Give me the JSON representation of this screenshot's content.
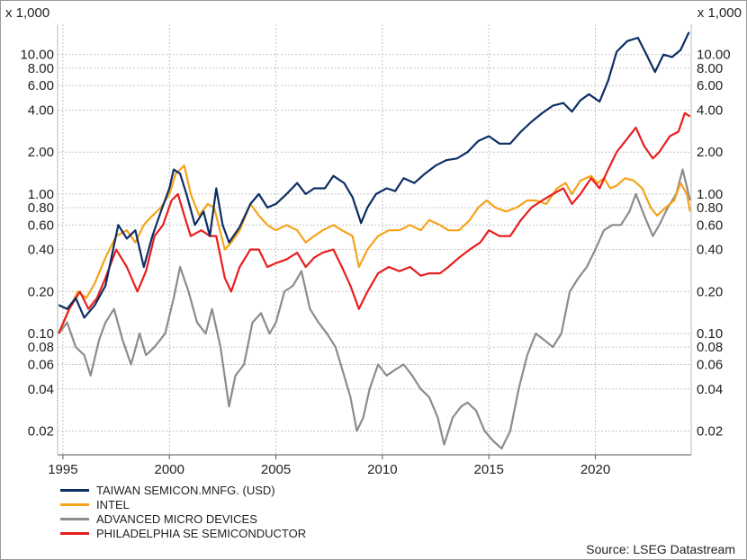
{
  "chart_data": {
    "type": "line",
    "scale": "log",
    "multiplier_label": "x 1,000",
    "y_ticks": [
      0.02,
      0.04,
      0.06,
      0.08,
      0.1,
      0.2,
      0.4,
      0.6,
      0.8,
      1.0,
      2.0,
      4.0,
      6.0,
      8.0,
      10.0
    ],
    "y_tick_labels": [
      "0.02",
      "0.04",
      "0.06",
      "0.08",
      "0.10",
      "0.20",
      "0.40",
      "0.60",
      "0.80",
      "1.00",
      "2.00",
      "4.00",
      "6.00",
      "8.00",
      "10.00"
    ],
    "x_ticks": [
      1995,
      2000,
      2005,
      2010,
      2015,
      2020
    ],
    "xlim": [
      1994.75,
      2024.5
    ],
    "ylim": [
      0.0135,
      16.5
    ],
    "grid": true,
    "legend_position": "bottom-left",
    "series": [
      {
        "name": "TAIWAN SEMICON.MNFG. (USD)",
        "color": "#0c2e62",
        "points": [
          [
            1994.8,
            0.16
          ],
          [
            1995.2,
            0.15
          ],
          [
            1995.6,
            0.18
          ],
          [
            1996.0,
            0.13
          ],
          [
            1996.5,
            0.16
          ],
          [
            1997.0,
            0.22
          ],
          [
            1997.6,
            0.6
          ],
          [
            1998.0,
            0.48
          ],
          [
            1998.4,
            0.55
          ],
          [
            1998.8,
            0.3
          ],
          [
            1999.2,
            0.5
          ],
          [
            1999.6,
            0.75
          ],
          [
            2000.0,
            1.1
          ],
          [
            2000.2,
            1.5
          ],
          [
            2000.5,
            1.4
          ],
          [
            2000.8,
            1.0
          ],
          [
            2001.2,
            0.6
          ],
          [
            2001.6,
            0.75
          ],
          [
            2001.9,
            0.5
          ],
          [
            2002.2,
            1.1
          ],
          [
            2002.5,
            0.6
          ],
          [
            2002.8,
            0.45
          ],
          [
            2003.3,
            0.58
          ],
          [
            2003.8,
            0.85
          ],
          [
            2004.2,
            1.0
          ],
          [
            2004.6,
            0.8
          ],
          [
            2005.0,
            0.85
          ],
          [
            2005.5,
            1.0
          ],
          [
            2006.0,
            1.2
          ],
          [
            2006.4,
            1.0
          ],
          [
            2006.8,
            1.1
          ],
          [
            2007.3,
            1.1
          ],
          [
            2007.7,
            1.35
          ],
          [
            2008.2,
            1.2
          ],
          [
            2008.6,
            0.95
          ],
          [
            2009.0,
            0.62
          ],
          [
            2009.3,
            0.8
          ],
          [
            2009.7,
            1.0
          ],
          [
            2010.2,
            1.1
          ],
          [
            2010.6,
            1.05
          ],
          [
            2011.0,
            1.3
          ],
          [
            2011.5,
            1.2
          ],
          [
            2012.0,
            1.4
          ],
          [
            2012.5,
            1.6
          ],
          [
            2013.0,
            1.75
          ],
          [
            2013.5,
            1.8
          ],
          [
            2014.0,
            2.0
          ],
          [
            2014.5,
            2.4
          ],
          [
            2015.0,
            2.6
          ],
          [
            2015.5,
            2.3
          ],
          [
            2016.0,
            2.3
          ],
          [
            2016.5,
            2.8
          ],
          [
            2017.0,
            3.3
          ],
          [
            2017.5,
            3.8
          ],
          [
            2018.0,
            4.3
          ],
          [
            2018.5,
            4.5
          ],
          [
            2018.9,
            3.9
          ],
          [
            2019.3,
            4.7
          ],
          [
            2019.7,
            5.2
          ],
          [
            2020.2,
            4.6
          ],
          [
            2020.6,
            6.5
          ],
          [
            2021.0,
            10.5
          ],
          [
            2021.5,
            12.5
          ],
          [
            2022.0,
            13.2
          ],
          [
            2022.4,
            10.0
          ],
          [
            2022.8,
            7.5
          ],
          [
            2023.2,
            10.0
          ],
          [
            2023.6,
            9.6
          ],
          [
            2024.0,
            10.8
          ],
          [
            2024.4,
            14.5
          ]
        ]
      },
      {
        "name": "INTEL",
        "color": "#f5a31a",
        "points": [
          [
            1994.8,
            0.1
          ],
          [
            1995.3,
            0.15
          ],
          [
            1995.7,
            0.2
          ],
          [
            1996.1,
            0.18
          ],
          [
            1996.5,
            0.23
          ],
          [
            1997.0,
            0.35
          ],
          [
            1997.5,
            0.5
          ],
          [
            1998.0,
            0.55
          ],
          [
            1998.4,
            0.45
          ],
          [
            1998.8,
            0.6
          ],
          [
            1999.2,
            0.7
          ],
          [
            1999.6,
            0.8
          ],
          [
            2000.0,
            1.0
          ],
          [
            2000.3,
            1.4
          ],
          [
            2000.7,
            1.6
          ],
          [
            2001.0,
            1.0
          ],
          [
            2001.4,
            0.7
          ],
          [
            2001.8,
            0.85
          ],
          [
            2002.1,
            0.8
          ],
          [
            2002.6,
            0.4
          ],
          [
            2002.9,
            0.45
          ],
          [
            2003.3,
            0.55
          ],
          [
            2003.8,
            0.85
          ],
          [
            2004.2,
            0.7
          ],
          [
            2004.6,
            0.6
          ],
          [
            2005.0,
            0.55
          ],
          [
            2005.5,
            0.6
          ],
          [
            2006.0,
            0.55
          ],
          [
            2006.4,
            0.45
          ],
          [
            2006.8,
            0.5
          ],
          [
            2007.2,
            0.55
          ],
          [
            2007.7,
            0.6
          ],
          [
            2008.1,
            0.55
          ],
          [
            2008.6,
            0.5
          ],
          [
            2008.9,
            0.3
          ],
          [
            2009.3,
            0.4
          ],
          [
            2009.8,
            0.5
          ],
          [
            2010.3,
            0.55
          ],
          [
            2010.8,
            0.55
          ],
          [
            2011.3,
            0.6
          ],
          [
            2011.8,
            0.55
          ],
          [
            2012.2,
            0.65
          ],
          [
            2012.7,
            0.6
          ],
          [
            2013.1,
            0.55
          ],
          [
            2013.6,
            0.55
          ],
          [
            2014.1,
            0.65
          ],
          [
            2014.5,
            0.8
          ],
          [
            2014.9,
            0.9
          ],
          [
            2015.3,
            0.8
          ],
          [
            2015.8,
            0.75
          ],
          [
            2016.3,
            0.8
          ],
          [
            2016.8,
            0.9
          ],
          [
            2017.2,
            0.9
          ],
          [
            2017.7,
            0.85
          ],
          [
            2018.2,
            1.1
          ],
          [
            2018.6,
            1.2
          ],
          [
            2018.9,
            1.0
          ],
          [
            2019.3,
            1.25
          ],
          [
            2019.8,
            1.35
          ],
          [
            2020.1,
            1.2
          ],
          [
            2020.4,
            1.3
          ],
          [
            2020.7,
            1.1
          ],
          [
            2021.0,
            1.15
          ],
          [
            2021.4,
            1.3
          ],
          [
            2021.8,
            1.25
          ],
          [
            2022.2,
            1.1
          ],
          [
            2022.6,
            0.8
          ],
          [
            2022.9,
            0.7
          ],
          [
            2023.3,
            0.8
          ],
          [
            2023.7,
            0.9
          ],
          [
            2024.0,
            1.2
          ],
          [
            2024.3,
            1.0
          ],
          [
            2024.45,
            0.75
          ]
        ]
      },
      {
        "name": "ADVANCED MICRO DEVICES",
        "color": "#8c8c8c",
        "points": [
          [
            1994.8,
            0.1
          ],
          [
            1995.2,
            0.12
          ],
          [
            1995.6,
            0.08
          ],
          [
            1996.0,
            0.07
          ],
          [
            1996.3,
            0.05
          ],
          [
            1996.7,
            0.09
          ],
          [
            1997.0,
            0.12
          ],
          [
            1997.4,
            0.15
          ],
          [
            1997.8,
            0.09
          ],
          [
            1998.2,
            0.06
          ],
          [
            1998.6,
            0.1
          ],
          [
            1998.9,
            0.07
          ],
          [
            1999.3,
            0.08
          ],
          [
            1999.8,
            0.1
          ],
          [
            2000.2,
            0.18
          ],
          [
            2000.5,
            0.3
          ],
          [
            2000.9,
            0.2
          ],
          [
            2001.3,
            0.12
          ],
          [
            2001.7,
            0.1
          ],
          [
            2002.0,
            0.15
          ],
          [
            2002.4,
            0.08
          ],
          [
            2002.8,
            0.03
          ],
          [
            2003.1,
            0.05
          ],
          [
            2003.5,
            0.06
          ],
          [
            2003.9,
            0.12
          ],
          [
            2004.3,
            0.14
          ],
          [
            2004.7,
            0.1
          ],
          [
            2005.0,
            0.12
          ],
          [
            2005.4,
            0.2
          ],
          [
            2005.8,
            0.22
          ],
          [
            2006.2,
            0.28
          ],
          [
            2006.6,
            0.15
          ],
          [
            2007.0,
            0.12
          ],
          [
            2007.4,
            0.1
          ],
          [
            2007.8,
            0.08
          ],
          [
            2008.2,
            0.05
          ],
          [
            2008.5,
            0.035
          ],
          [
            2008.8,
            0.02
          ],
          [
            2009.1,
            0.025
          ],
          [
            2009.4,
            0.04
          ],
          [
            2009.8,
            0.06
          ],
          [
            2010.2,
            0.05
          ],
          [
            2010.6,
            0.055
          ],
          [
            2011.0,
            0.06
          ],
          [
            2011.4,
            0.05
          ],
          [
            2011.8,
            0.04
          ],
          [
            2012.2,
            0.035
          ],
          [
            2012.6,
            0.025
          ],
          [
            2012.9,
            0.016
          ],
          [
            2013.3,
            0.025
          ],
          [
            2013.7,
            0.03
          ],
          [
            2014.0,
            0.032
          ],
          [
            2014.4,
            0.028
          ],
          [
            2014.8,
            0.02
          ],
          [
            2015.2,
            0.017
          ],
          [
            2015.6,
            0.015
          ],
          [
            2016.0,
            0.02
          ],
          [
            2016.4,
            0.04
          ],
          [
            2016.8,
            0.07
          ],
          [
            2017.2,
            0.1
          ],
          [
            2017.6,
            0.09
          ],
          [
            2018.0,
            0.08
          ],
          [
            2018.4,
            0.1
          ],
          [
            2018.8,
            0.2
          ],
          [
            2019.2,
            0.25
          ],
          [
            2019.6,
            0.3
          ],
          [
            2020.0,
            0.4
          ],
          [
            2020.4,
            0.55
          ],
          [
            2020.8,
            0.6
          ],
          [
            2021.2,
            0.6
          ],
          [
            2021.6,
            0.75
          ],
          [
            2021.9,
            1.0
          ],
          [
            2022.3,
            0.7
          ],
          [
            2022.7,
            0.5
          ],
          [
            2023.0,
            0.6
          ],
          [
            2023.4,
            0.8
          ],
          [
            2023.8,
            1.0
          ],
          [
            2024.1,
            1.5
          ],
          [
            2024.45,
            0.9
          ]
        ]
      },
      {
        "name": "PHILADELPHIA SE SEMICONDUCTOR",
        "color": "#e81e1e",
        "points": [
          [
            1994.8,
            0.1
          ],
          [
            1995.3,
            0.15
          ],
          [
            1995.8,
            0.2
          ],
          [
            1996.2,
            0.15
          ],
          [
            1996.6,
            0.18
          ],
          [
            1997.0,
            0.25
          ],
          [
            1997.5,
            0.4
          ],
          [
            1998.0,
            0.3
          ],
          [
            1998.5,
            0.2
          ],
          [
            1998.9,
            0.28
          ],
          [
            1999.3,
            0.5
          ],
          [
            1999.7,
            0.6
          ],
          [
            2000.1,
            0.9
          ],
          [
            2000.4,
            1.0
          ],
          [
            2000.7,
            0.7
          ],
          [
            2001.0,
            0.5
          ],
          [
            2001.5,
            0.55
          ],
          [
            2001.9,
            0.5
          ],
          [
            2002.2,
            0.5
          ],
          [
            2002.6,
            0.25
          ],
          [
            2002.9,
            0.2
          ],
          [
            2003.3,
            0.3
          ],
          [
            2003.8,
            0.4
          ],
          [
            2004.2,
            0.4
          ],
          [
            2004.6,
            0.3
          ],
          [
            2005.0,
            0.32
          ],
          [
            2005.5,
            0.34
          ],
          [
            2006.0,
            0.38
          ],
          [
            2006.4,
            0.3
          ],
          [
            2006.8,
            0.35
          ],
          [
            2007.2,
            0.38
          ],
          [
            2007.7,
            0.4
          ],
          [
            2008.1,
            0.3
          ],
          [
            2008.5,
            0.22
          ],
          [
            2008.9,
            0.15
          ],
          [
            2009.3,
            0.2
          ],
          [
            2009.8,
            0.27
          ],
          [
            2010.3,
            0.3
          ],
          [
            2010.8,
            0.28
          ],
          [
            2011.3,
            0.3
          ],
          [
            2011.8,
            0.26
          ],
          [
            2012.2,
            0.27
          ],
          [
            2012.7,
            0.27
          ],
          [
            2013.1,
            0.3
          ],
          [
            2013.6,
            0.35
          ],
          [
            2014.1,
            0.4
          ],
          [
            2014.6,
            0.45
          ],
          [
            2015.0,
            0.55
          ],
          [
            2015.5,
            0.5
          ],
          [
            2016.0,
            0.5
          ],
          [
            2016.5,
            0.65
          ],
          [
            2017.0,
            0.8
          ],
          [
            2017.5,
            0.9
          ],
          [
            2018.0,
            1.0
          ],
          [
            2018.5,
            1.1
          ],
          [
            2018.9,
            0.85
          ],
          [
            2019.3,
            1.0
          ],
          [
            2019.8,
            1.3
          ],
          [
            2020.2,
            1.1
          ],
          [
            2020.6,
            1.5
          ],
          [
            2021.0,
            2.0
          ],
          [
            2021.5,
            2.5
          ],
          [
            2021.9,
            3.0
          ],
          [
            2022.3,
            2.2
          ],
          [
            2022.7,
            1.8
          ],
          [
            2023.0,
            2.0
          ],
          [
            2023.5,
            2.6
          ],
          [
            2023.9,
            2.8
          ],
          [
            2024.2,
            3.8
          ],
          [
            2024.45,
            3.6
          ]
        ]
      }
    ]
  },
  "source": "Source: LSEG Datastream"
}
